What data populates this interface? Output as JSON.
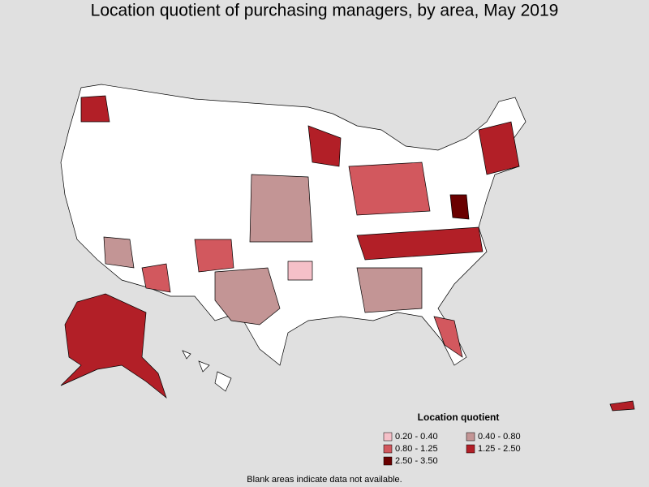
{
  "title": "Location quotient of purchasing managers, by area, May 2019",
  "legend": {
    "title": "Location quotient",
    "items": [
      {
        "label": "0.20 - 0.40",
        "color": "#f5c0c8"
      },
      {
        "label": "0.40 - 0.80",
        "color": "#c39595"
      },
      {
        "label": "0.80 - 1.25",
        "color": "#d2585e"
      },
      {
        "label": "1.25 - 2.50",
        "color": "#b21f27"
      },
      {
        "label": "2.50 - 3.50",
        "color": "#6a0000"
      }
    ]
  },
  "footnote": "Blank areas indicate data not available."
}
